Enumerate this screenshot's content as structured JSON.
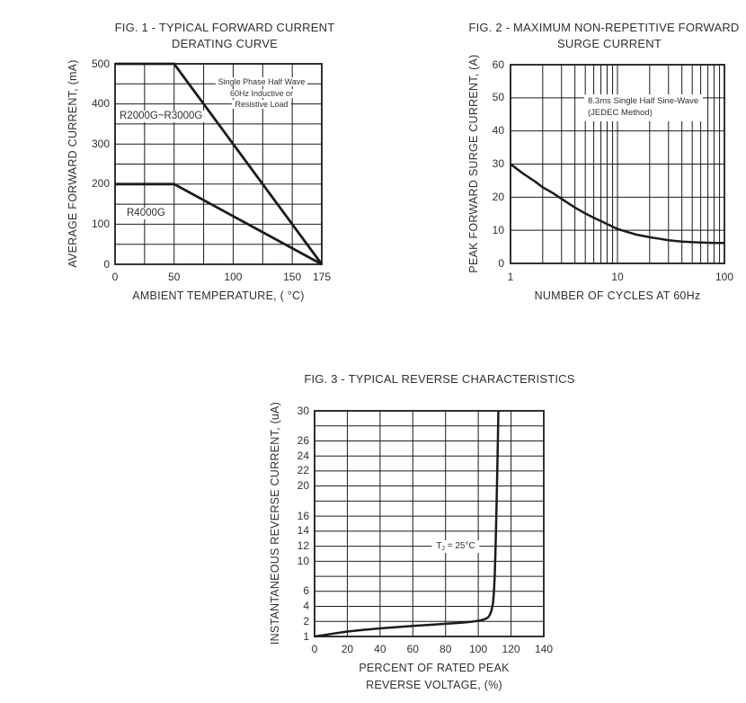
{
  "colors": {
    "background": "#ffffff",
    "ink": "#1b1b1d",
    "text": "#2e3036"
  },
  "chart_data": [
    {
      "id": "figure-1",
      "type": "line",
      "title_lines": [
        "FIG. 1 - TYPICAL FORWARD CURRENT",
        "DERATING CURVE"
      ],
      "xlabel": "AMBIENT TEMPERATURE, ( °C)",
      "ylabel": "AVERAGE FORWARD CURRENT, (mA)",
      "x_axis": {
        "type": "linear",
        "min": 0,
        "max": 175,
        "grid_step": 25,
        "tick_values": [
          0,
          50,
          100,
          150,
          175
        ],
        "tick_labels": [
          "0",
          "50",
          "100",
          "150",
          "175"
        ]
      },
      "y_axis": {
        "type": "linear",
        "min": 0,
        "max": 500,
        "grid_step": 50,
        "tick_values": [
          0,
          100,
          200,
          300,
          400,
          500
        ],
        "tick_labels": [
          "0",
          "100",
          "200",
          "300",
          "400",
          "500"
        ]
      },
      "series": [
        {
          "name": "R2000G~R3000G",
          "points": [
            [
              0,
              500
            ],
            [
              50,
              500
            ],
            [
              175,
              0
            ]
          ]
        },
        {
          "name": "R4000G",
          "points": [
            [
              0,
              200
            ],
            [
              50,
              200
            ],
            [
              175,
              0
            ]
          ]
        }
      ],
      "series_labels": [
        "R2000G~R3000G",
        "R4000G"
      ],
      "annotation_lines": [
        "Single Phase Half Wave",
        "60Hz Inductive or",
        "Resistive Load"
      ]
    },
    {
      "id": "figure-2",
      "type": "line",
      "title_lines": [
        "FIG. 2 - MAXIMUM NON-REPETITIVE FORWARD",
        "SURGE CURRENT"
      ],
      "xlabel": "NUMBER OF CYCLES AT 60Hz",
      "ylabel": "PEAK FORWARD SURGE CURRENT, (A)",
      "x_axis": {
        "type": "log",
        "min": 1,
        "max": 100,
        "tick_values": [
          1,
          10,
          100
        ],
        "tick_labels": [
          "1",
          "10",
          "100"
        ]
      },
      "y_axis": {
        "type": "linear",
        "min": 0,
        "max": 60,
        "grid_step": 10,
        "tick_values": [
          0,
          10,
          20,
          30,
          40,
          50,
          60
        ],
        "tick_labels": [
          "0",
          "10",
          "20",
          "30",
          "40",
          "50",
          "60"
        ]
      },
      "series": [
        {
          "name": "surge-current",
          "points": [
            [
              1,
              30
            ],
            [
              1.3,
              27.2
            ],
            [
              1.7,
              24.7
            ],
            [
              2,
              23
            ],
            [
              2.5,
              21.2
            ],
            [
              3,
              19.5
            ],
            [
              4,
              16.9
            ],
            [
              5,
              15.1
            ],
            [
              6,
              13.8
            ],
            [
              7,
              12.8
            ],
            [
              8,
              11.9
            ],
            [
              9,
              11.1
            ],
            [
              10,
              10.4
            ],
            [
              12,
              9.6
            ],
            [
              15,
              8.7
            ],
            [
              20,
              7.9
            ],
            [
              25,
              7.4
            ],
            [
              30,
              7
            ],
            [
              40,
              6.6
            ],
            [
              50,
              6.4
            ],
            [
              60,
              6.3
            ],
            [
              80,
              6.2
            ],
            [
              100,
              6.2
            ]
          ]
        }
      ],
      "annotation_lines": [
        "8.3ms Single Half Sine-Wave",
        "(JEDEC Method)"
      ]
    },
    {
      "id": "figure-3",
      "type": "line",
      "title_lines": [
        "FIG. 3 - TYPICAL REVERSE CHARACTERISTICS"
      ],
      "xlabel_lines": [
        "PERCENT OF RATED PEAK",
        "REVERSE VOLTAGE, (%)"
      ],
      "ylabel": "INSTANTANEOUS REVERSE CURRENT, (uA)",
      "x_axis": {
        "type": "linear",
        "min": 0,
        "max": 140,
        "grid_step": 20,
        "tick_values": [
          0,
          20,
          40,
          60,
          80,
          100,
          120,
          140
        ],
        "tick_labels": [
          "0",
          "20",
          "40",
          "60",
          "80",
          "100",
          "120",
          "140"
        ]
      },
      "y_axis": {
        "type": "ladder",
        "levels_bottom_to_top": [
          "1",
          "2",
          "4",
          "6",
          "",
          "10",
          "12",
          "14",
          "16",
          "",
          "20",
          "22",
          "24",
          "26",
          "",
          "30"
        ]
      },
      "series": [
        {
          "name": "reverse-current",
          "points": [
            [
              0,
              1
            ],
            [
              5,
              1.08
            ],
            [
              10,
              1.17
            ],
            [
              20,
              1.33
            ],
            [
              30,
              1.44
            ],
            [
              40,
              1.54
            ],
            [
              50,
              1.62
            ],
            [
              60,
              1.7
            ],
            [
              70,
              1.77
            ],
            [
              80,
              1.84
            ],
            [
              90,
              1.92
            ],
            [
              95,
              1.97
            ],
            [
              100,
              2.08
            ],
            [
              103,
              2.22
            ],
            [
              105,
              2.4
            ],
            [
              106,
              2.55
            ],
            [
              107,
              2.85
            ],
            [
              108,
              3.4
            ],
            [
              109,
              4.4
            ],
            [
              109.6,
              6
            ],
            [
              110,
              8
            ],
            [
              110.5,
              11.5
            ],
            [
              111,
              16
            ],
            [
              111.5,
              21
            ],
            [
              112,
              26.5
            ],
            [
              112.3,
              30
            ]
          ]
        }
      ],
      "annotation": {
        "prefix": "T",
        "subscript": "J",
        "suffix": " = 25°C"
      }
    }
  ]
}
